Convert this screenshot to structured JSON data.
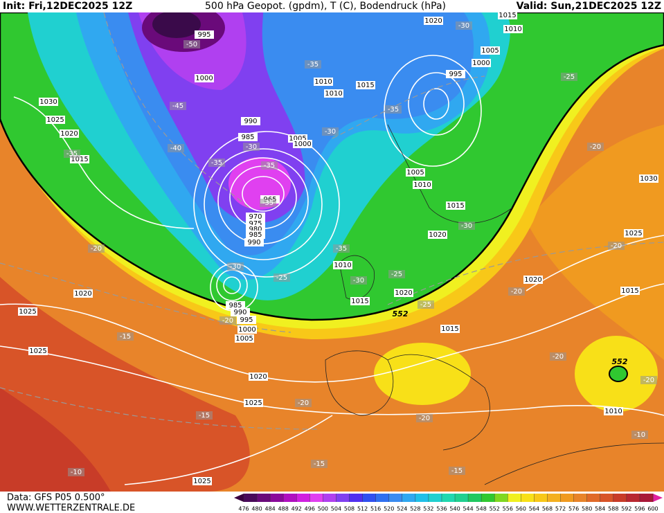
{
  "header": {
    "init": "Init: Fri,12DEC2025 12Z",
    "title": "500 hPa Geopot. (gpdm), T (C), Bodendruck (hPa)",
    "valid": "Valid: Sun,21DEC2025 12Z"
  },
  "footer": {
    "data": "Data: GFS P05 0.500°",
    "site": "WWW.WETTERZENTRALE.DE"
  },
  "isobar_labels": [
    "995",
    "1000",
    "1030",
    "1025",
    "1020",
    "1015",
    "990",
    "985",
    "965",
    "970",
    "975",
    "980",
    "985",
    "990",
    "1005",
    "1000",
    "1010",
    "1010",
    "1015",
    "1020",
    "1015",
    "1010",
    "1005",
    "1000",
    "995",
    "1005",
    "1010",
    "1015",
    "1020",
    "1030",
    "1025",
    "1020",
    "1015",
    "1010",
    "1015",
    "1020",
    "1015",
    "985",
    "990",
    "995",
    "1000",
    "1005",
    "1020",
    "1025",
    "1025",
    "1020",
    "1025",
    "1010",
    "1025"
  ],
  "temperature_labels": [
    "-50",
    "-45",
    "-40",
    "-35",
    "-30",
    "-35",
    "-35",
    "-35",
    "-30",
    "-35",
    "-35",
    "-30",
    "-25",
    "-20",
    "-20",
    "-35",
    "-30",
    "-30",
    "-25",
    "-30",
    "-25",
    "-25",
    "-20",
    "-20",
    "-20",
    "-20",
    "-20",
    "-15",
    "-15",
    "-20",
    "-20",
    "-10",
    "-15",
    "-15",
    "-10"
  ],
  "geopotential_labels": [
    "552",
    "552"
  ],
  "colorbar": {
    "levels": [
      476,
      480,
      484,
      488,
      492,
      496,
      500,
      504,
      508,
      512,
      516,
      520,
      524,
      528,
      532,
      536,
      540,
      544,
      548,
      552,
      556,
      560,
      564,
      568,
      572,
      576,
      580,
      584,
      588,
      592,
      596,
      600
    ],
    "colors": [
      "#4a0a5a",
      "#6a0a7a",
      "#8a0a9a",
      "#b010c0",
      "#d020e0",
      "#e040f0",
      "#b040f0",
      "#8040f0",
      "#5030f0",
      "#3050f0",
      "#3070f0",
      "#3a8cf0",
      "#30a8f0",
      "#20c0e8",
      "#20d0d0",
      "#20d8b0",
      "#20d090",
      "#20c860",
      "#30c830",
      "#80d820",
      "#f0f020",
      "#f8e018",
      "#f8c818",
      "#f4b020",
      "#f09a20",
      "#e8842a",
      "#e06a28",
      "#d85428",
      "#c83c28",
      "#b82830",
      "#a81838"
    ],
    "low_color": "#3a0040",
    "high_color": "#e020a0"
  }
}
